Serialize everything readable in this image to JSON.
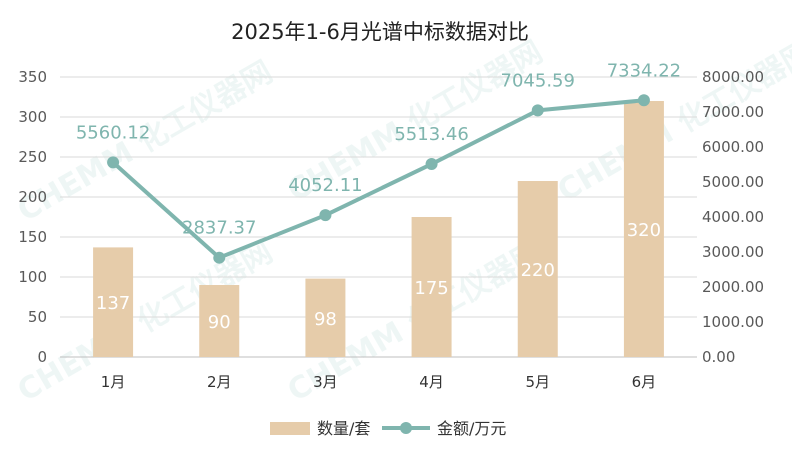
{
  "chart_data": {
    "type": "bar",
    "title": "2025年1-6月光谱中标数据对比",
    "categories": [
      "1月",
      "2月",
      "3月",
      "4月",
      "5月",
      "6月"
    ],
    "series": [
      {
        "name": "数量/套",
        "type": "bar",
        "axis": "left",
        "color": "#e6ccaa",
        "values": [
          137,
          90,
          98,
          175,
          220,
          320
        ],
        "labels": [
          "137",
          "90",
          "98",
          "175",
          "220",
          "320"
        ]
      },
      {
        "name": "金额/万元",
        "type": "line",
        "axis": "right",
        "color": "#7fb5ae",
        "values": [
          5560.12,
          2837.37,
          4052.11,
          5513.46,
          7045.59,
          7334.22
        ],
        "labels": [
          "5560.12",
          "2837.37",
          "4052.11",
          "5513.46",
          "7045.59",
          "7334.22"
        ]
      }
    ],
    "y_left": {
      "min": 0,
      "max": 350,
      "ticks": [
        "0",
        "50",
        "100",
        "150",
        "200",
        "250",
        "300",
        "350"
      ]
    },
    "y_right": {
      "min": 0,
      "max": 8000,
      "ticks": [
        "0.00",
        "1000.00",
        "2000.00",
        "3000.00",
        "4000.00",
        "5000.00",
        "6000.00",
        "7000.00",
        "8000.00"
      ]
    },
    "grid": true,
    "legend": "bottom-center",
    "watermark": "CHEMM 化工仪器网"
  }
}
